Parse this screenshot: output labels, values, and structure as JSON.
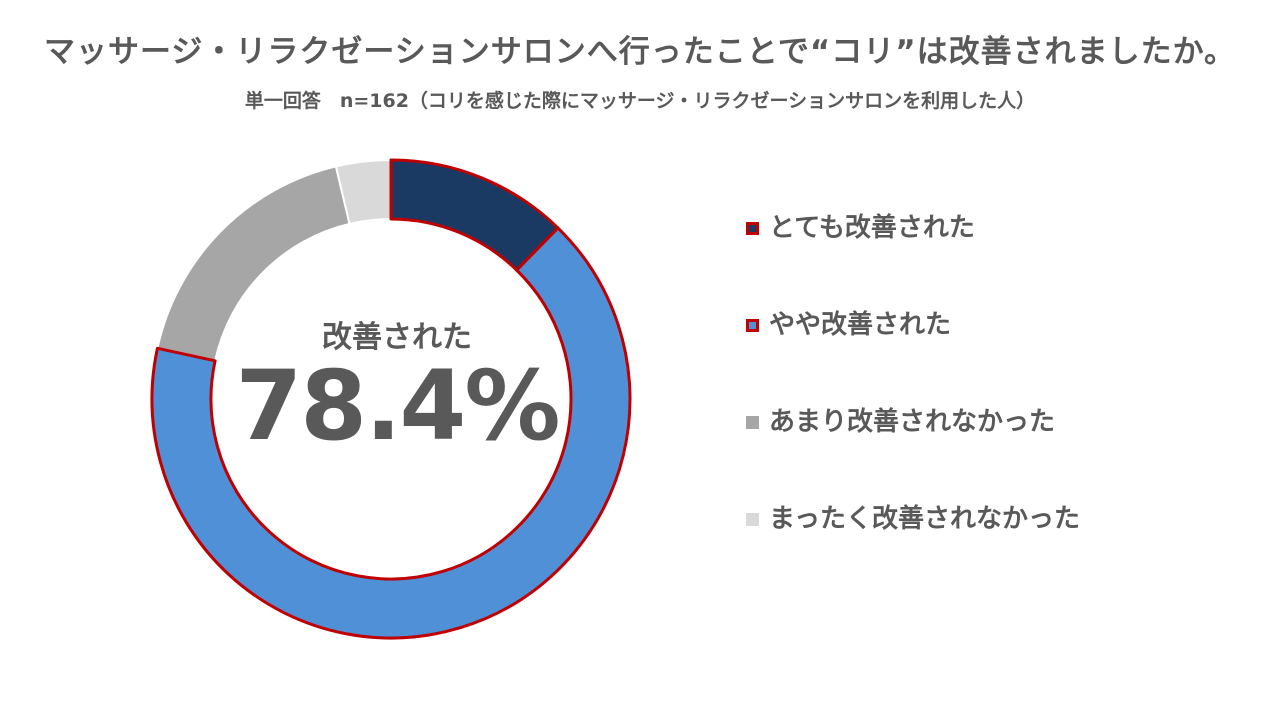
{
  "title": "マッサージ・リラクゼーションサロンへ行ったことで“コリ”は改善されましたか。",
  "subtitle": "単一回答　n=162（コリを感じた際にマッサージ・リラクゼーションサロンを利用した人）",
  "center": {
    "label": "改善された",
    "value": "78.4%"
  },
  "colors": {
    "highlight_outline": "#c00000",
    "text": "#595959"
  },
  "chart_data": {
    "type": "pie",
    "donut": true,
    "unit": "%",
    "categories": [
      "とても改善された",
      "やや改善された",
      "あまり改善されなかった",
      "まったく改善されなかった"
    ],
    "values": [
      12.3,
      66.1,
      17.9,
      3.7
    ],
    "colors": [
      "#1a3a63",
      "#4f90d7",
      "#a6a6a6",
      "#d9d9d9"
    ],
    "highlighted": [
      true,
      true,
      false,
      false
    ],
    "center_annotation": "改善された 78.4%",
    "legend_position": "right"
  }
}
